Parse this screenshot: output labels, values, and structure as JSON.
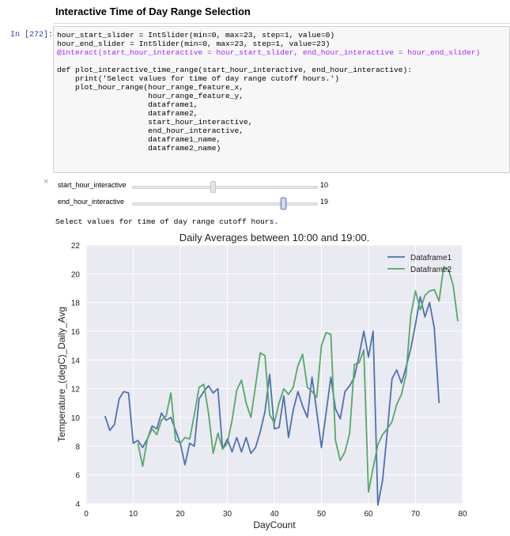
{
  "heading": "Interactive Time of Day Range Selection",
  "prompt": "In [272]:",
  "code_lines": [
    "hour_start_slider = IntSlider(min=0, max=23, step=1, value=0)",
    "hour_end_slider = IntSlider(min=0, max=23, step=1, value=23)",
    "@interact(start_hour_interactive = hour_start_slider, end_hour_interactive = hour_end_slider)",
    "",
    "def plot_interactive_time_range(start_hour_interactive, end_hour_interactive):",
    "    print('Select values for time of day range cutoff hours.')",
    "    plot_hour_range(hour_range_feature_x,",
    "                    hour_range_feature_y,",
    "                    dataframe1,",
    "                    dataframe2,",
    "                    start_hour_interactive,",
    "                    end_hour_interactive,",
    "                    dataframe1_name,",
    "                    dataframe2_name)"
  ],
  "close_icon": "×",
  "sliders": [
    {
      "label": "start_hour_interactive",
      "value": "10",
      "min": 0,
      "max": 23,
      "level": 10,
      "active": false
    },
    {
      "label": "end_hour_interactive",
      "value": "19",
      "min": 0,
      "max": 23,
      "level": 19,
      "active": true
    }
  ],
  "output_text": "Select values for time of day range cutoff hours.",
  "colors": {
    "series1": "#4c72b0",
    "series2": "#55a868",
    "plot_bg": "#eaeaf2"
  },
  "chart_data": {
    "type": "line",
    "title": "Daily Averages between 10:00 and 19:00.",
    "xlabel": "DayCount",
    "ylabel": "Temperature_(degC)_Daily_Avg",
    "xlim": [
      0,
      80
    ],
    "ylim": [
      4,
      22
    ],
    "xticks": [
      0,
      10,
      20,
      30,
      40,
      50,
      60,
      70,
      80
    ],
    "yticks": [
      4,
      6,
      8,
      10,
      12,
      14,
      16,
      18,
      20,
      22
    ],
    "grid": true,
    "legend": "top-right",
    "series": [
      {
        "name": "Dataframe1",
        "x": [
          4,
          5,
          6,
          7,
          8,
          9,
          10,
          11,
          12,
          13,
          14,
          15,
          16,
          17,
          18,
          19,
          20,
          21,
          22,
          23,
          24,
          25,
          26,
          27,
          28,
          29,
          30,
          31,
          32,
          33,
          34,
          35,
          36,
          37,
          38,
          39,
          40,
          41,
          42,
          43,
          44,
          45,
          46,
          47,
          48,
          49,
          50,
          51,
          52,
          53,
          54,
          55,
          56,
          57,
          58,
          59,
          60,
          61,
          62,
          63,
          64,
          65,
          66,
          67,
          68,
          69,
          70,
          71,
          72,
          73,
          74,
          75
        ],
        "y": [
          10.1,
          9.1,
          9.5,
          11.3,
          11.8,
          11.7,
          8.2,
          8.4,
          7.9,
          8.5,
          9.4,
          9.2,
          10.3,
          9.8,
          10.0,
          9.1,
          8.2,
          6.7,
          8.2,
          8.0,
          11.3,
          11.8,
          12.2,
          11.7,
          12.0,
          7.8,
          8.5,
          7.6,
          8.6,
          7.6,
          8.6,
          7.5,
          7.9,
          9.0,
          10.4,
          13.0,
          9.2,
          9.3,
          11.5,
          8.6,
          10.5,
          11.8,
          10.8,
          10.0,
          12.8,
          10.4,
          7.9,
          10.3,
          12.8,
          10.6,
          9.9,
          11.8,
          12.2,
          12.8,
          14.3,
          16.0,
          14.2,
          16.0,
          3.9,
          5.6,
          9.0,
          12.7,
          13.3,
          12.4,
          13.5,
          14.8,
          16.5,
          18.4,
          17.0,
          18.0,
          16.2,
          11.0
        ]
      },
      {
        "name": "Dataframe2",
        "x": [
          11,
          12,
          13,
          14,
          15,
          16,
          17,
          18,
          19,
          20,
          21,
          22,
          23,
          24,
          25,
          26,
          27,
          28,
          29,
          30,
          31,
          32,
          33,
          34,
          35,
          36,
          37,
          38,
          39,
          40,
          41,
          42,
          43,
          44,
          45,
          46,
          47,
          48,
          49,
          50,
          51,
          52,
          53,
          54,
          55,
          56,
          57,
          58,
          59,
          60,
          61,
          62,
          63,
          64,
          65,
          66,
          67,
          68,
          69,
          70,
          71,
          72,
          73,
          74,
          75,
          76,
          77,
          78,
          79
        ],
        "y": [
          8.2,
          6.6,
          8.5,
          9.2,
          8.8,
          9.8,
          10.1,
          11.7,
          8.4,
          8.2,
          8.6,
          8.5,
          10.2,
          12.1,
          12.3,
          10.3,
          7.5,
          8.9,
          7.8,
          8.2,
          9.8,
          11.9,
          12.6,
          11.0,
          10.0,
          12.2,
          14.5,
          14.3,
          10.2,
          9.6,
          11.0,
          12.0,
          11.6,
          12.1,
          13.6,
          14.4,
          12.1,
          11.8,
          11.4,
          15.0,
          15.9,
          15.8,
          8.4,
          7.0,
          7.6,
          8.9,
          13.7,
          13.8,
          14.7,
          4.8,
          6.5,
          8.1,
          8.8,
          9.2,
          9.7,
          10.9,
          11.6,
          13.0,
          17.1,
          18.8,
          17.5,
          18.5,
          18.8,
          18.9,
          18.1,
          20.5,
          20.3,
          19.2,
          16.7
        ]
      }
    ]
  }
}
